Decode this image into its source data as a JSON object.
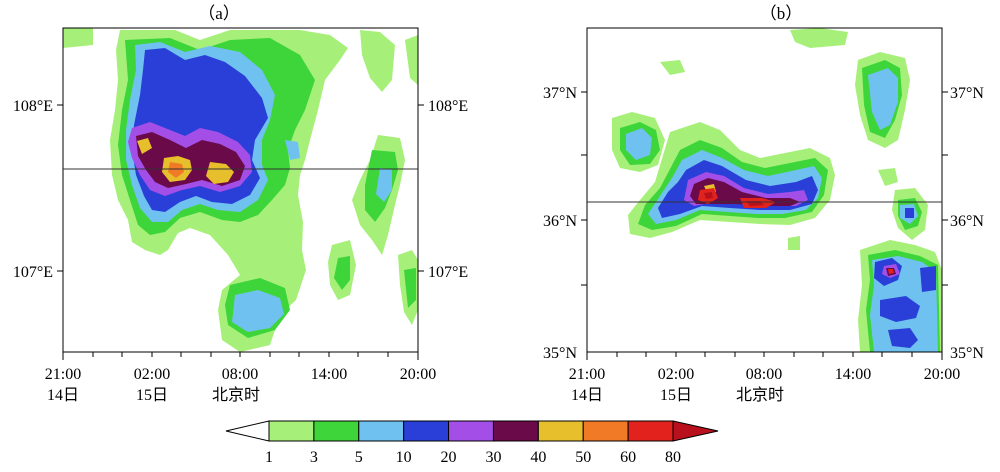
{
  "colors": {
    "1": "#a6f07a",
    "3": "#3ed53a",
    "5": "#6fc2ef",
    "10": "#2a3fd8",
    "20": "#a44ee8",
    "30": "#6b0a48",
    "40": "#e7bf2d",
    "50": "#f07a25",
    "60": "#e2231d",
    "80": "#b8101c"
  },
  "colorbar": {
    "levels": [
      "1",
      "3",
      "5",
      "10",
      "20",
      "30",
      "40",
      "50",
      "60",
      "80"
    ]
  },
  "panels": [
    {
      "id": "a",
      "label": "（a）",
      "x_ticks": [
        "21:00",
        "02:00",
        "08:00",
        "14:00",
        "20:00"
      ],
      "x_sub": [
        "14日",
        "15日"
      ],
      "x_unit": "北京时",
      "y_ticks": [
        "108°E",
        "107°E"
      ]
    },
    {
      "id": "b",
      "label": "（b）",
      "x_ticks": [
        "21:00",
        "02:00",
        "08:00",
        "14:00",
        "20:00"
      ],
      "x_sub": [
        "14日",
        "15日"
      ],
      "x_unit": "北京时",
      "y_ticks": [
        "37°N",
        "36°N",
        "35°N"
      ]
    }
  ],
  "chart_data": [
    {
      "type": "heatmap",
      "title": "（a）",
      "x_ticks": [
        "21:00 14日",
        "02:00 15日",
        "08:00",
        "14:00",
        "20:00"
      ],
      "x_unit": "北京时",
      "y_ticks": [
        "108°E",
        "107°E"
      ],
      "levels": [
        1,
        3,
        5,
        10,
        20,
        30,
        40,
        50,
        60,
        80
      ]
    },
    {
      "type": "heatmap",
      "title": "（b）",
      "x_ticks": [
        "21:00 14日",
        "02:00 15日",
        "08:00",
        "14:00",
        "20:00"
      ],
      "x_unit": "北京时",
      "y_ticks": [
        "37°N",
        "36°N",
        "35°N"
      ],
      "levels": [
        1,
        3,
        5,
        10,
        20,
        30,
        40,
        50,
        60,
        80
      ]
    }
  ]
}
